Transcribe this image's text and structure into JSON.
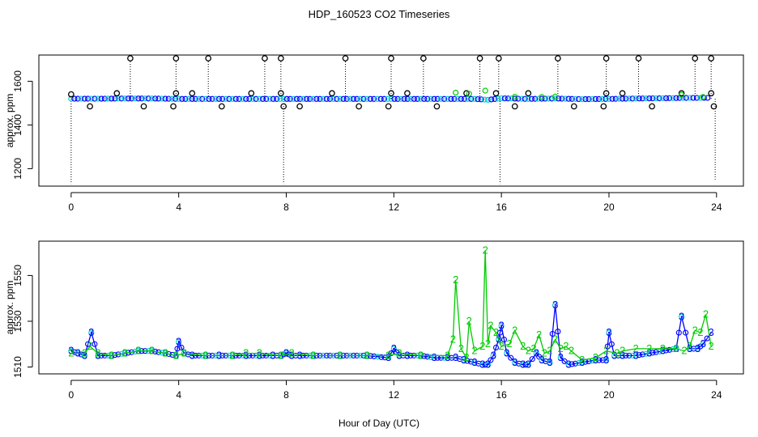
{
  "title": "HDP_160523  CO2 Timeseries",
  "xlabel": "Hour of Day (UTC)",
  "colors": {
    "black": "#000000",
    "blue": "#0000ff",
    "green": "#00cc00",
    "cyan": "#00cccc"
  },
  "chart_data": [
    {
      "type": "scatter",
      "title": "HDP_160523  CO2 Timeseries",
      "xlabel": "",
      "ylabel": "approx. ppm",
      "xlim": [
        -1.2,
        25.0
      ],
      "ylim": [
        1120,
        1720
      ],
      "xticks": [
        0,
        4,
        8,
        12,
        16,
        20,
        24
      ],
      "yticks": [
        1200,
        1400,
        1600
      ],
      "grid": false,
      "series": [
        {
          "name": "",
          "color": "#000000",
          "marker": "circle",
          "x": [
            0.0,
            0.7,
            1.7,
            2.2,
            2.7,
            3.8,
            3.9,
            3.9,
            4.5,
            5.1,
            5.6,
            6.7,
            7.2,
            7.8,
            7.8,
            7.9,
            8.5,
            9.7,
            10.2,
            10.7,
            11.8,
            11.9,
            11.9,
            12.5,
            13.1,
            13.6,
            14.7,
            15.2,
            15.8,
            15.9,
            16.5,
            17.0,
            18.1,
            18.7,
            19.8,
            19.9,
            19.9,
            20.5,
            21.1,
            21.6,
            22.7,
            23.2,
            23.8,
            23.8,
            23.9
          ],
          "y": [
            1540,
            1485,
            1545,
            1705,
            1485,
            1485,
            1545,
            1705,
            1545,
            1705,
            1485,
            1545,
            1705,
            1545,
            1705,
            1485,
            1485,
            1545,
            1705,
            1485,
            1485,
            1545,
            1705,
            1545,
            1705,
            1485,
            1545,
            1705,
            1545,
            1705,
            1485,
            1545,
            1705,
            1485,
            1485,
            1545,
            1705,
            1545,
            1705,
            1485,
            1545,
            1705,
            1545,
            1705,
            1485
          ]
        },
        {
          "name": "",
          "color": "#0000ff",
          "marker": "circle",
          "x": [
            0.0,
            1.0,
            2.0,
            3.0,
            4.0,
            5.0,
            6.0,
            7.0,
            7.9,
            9.0,
            10.0,
            11.0,
            11.9,
            13.0,
            14.0,
            15.0,
            15.5,
            16.0,
            17.0,
            18.0,
            19.0,
            20.0,
            21.0,
            22.0,
            23.0,
            23.8
          ],
          "y": [
            1520,
            1520,
            1521,
            1521,
            1519,
            1519,
            1519,
            1519,
            1519,
            1519,
            1519,
            1519,
            1519,
            1519,
            1519,
            1519,
            1515,
            1522,
            1519,
            1521,
            1518,
            1519,
            1521,
            1522,
            1524,
            1524
          ]
        },
        {
          "name": "",
          "color": "#00cc00",
          "marker": "circle",
          "x": [
            14.3,
            14.8,
            15.4,
            16.5,
            17.5,
            18.0,
            22.7,
            23.5
          ],
          "y": [
            1548,
            1543,
            1557,
            1529,
            1528,
            1530,
            1538,
            1528
          ]
        }
      ]
    },
    {
      "type": "line",
      "title": "",
      "xlabel": "Hour of Day (UTC)",
      "ylabel": "approx. ppm",
      "xlim": [
        -1.2,
        25.0
      ],
      "ylim": [
        1507,
        1565
      ],
      "xticks": [
        0,
        4,
        8,
        12,
        16,
        20,
        24
      ],
      "yticks": [
        1510,
        1530,
        1550
      ],
      "grid": false,
      "series": [
        {
          "name": "",
          "color": "#0000ff",
          "marker": "3",
          "x": [
            0.0,
            0.25,
            0.5,
            0.75,
            1.0,
            1.5,
            2.0,
            2.5,
            3.0,
            3.5,
            3.9,
            4.0,
            4.2,
            4.5,
            5.0,
            5.5,
            6.0,
            6.5,
            7.0,
            7.5,
            7.8,
            8.0,
            8.2,
            8.5,
            9.0,
            10.0,
            11.0,
            11.8,
            12.0,
            12.2,
            12.5,
            13.0,
            13.5,
            14.0,
            14.3,
            14.6,
            15.0,
            15.3,
            15.5,
            15.7,
            15.9,
            16.0,
            16.2,
            16.5,
            16.8,
            17.0,
            17.3,
            17.5,
            17.8,
            18.0,
            18.2,
            18.5,
            19.0,
            19.5,
            19.9,
            20.0,
            20.2,
            20.5,
            21.0,
            21.5,
            22.0,
            22.5,
            22.7,
            23.0,
            23.3,
            23.5,
            23.8
          ],
          "y": [
            1517,
            1516,
            1515,
            1525,
            1515,
            1515,
            1516,
            1517,
            1517,
            1516,
            1515,
            1521,
            1516,
            1515,
            1515,
            1515,
            1515,
            1515,
            1515,
            1515,
            1515,
            1516,
            1515,
            1515,
            1515,
            1515,
            1515,
            1514,
            1518,
            1515,
            1515,
            1515,
            1514,
            1514,
            1514,
            1513,
            1512,
            1511,
            1511,
            1515,
            1522,
            1528,
            1516,
            1512,
            1511,
            1511,
            1516,
            1513,
            1512,
            1537,
            1514,
            1511,
            1512,
            1513,
            1513,
            1525,
            1515,
            1515,
            1515,
            1516,
            1517,
            1518,
            1532,
            1518,
            1518,
            1520,
            1525
          ]
        },
        {
          "name": "",
          "color": "#00cc00",
          "marker": "2",
          "x": [
            0.0,
            0.5,
            0.7,
            1.0,
            1.5,
            2.0,
            2.5,
            3.0,
            3.5,
            3.9,
            4.2,
            5.0,
            6.0,
            6.5,
            7.0,
            7.8,
            8.2,
            9.0,
            10.0,
            11.0,
            11.8,
            12.2,
            13.0,
            14.0,
            14.2,
            14.3,
            14.5,
            14.7,
            14.8,
            15.0,
            15.3,
            15.4,
            15.5,
            15.6,
            15.8,
            16.0,
            16.3,
            16.5,
            16.8,
            17.0,
            17.2,
            17.4,
            17.6,
            17.8,
            18.0,
            18.2,
            18.4,
            18.6,
            19.0,
            19.5,
            19.9,
            20.3,
            20.5,
            21.0,
            21.5,
            22.0,
            22.5,
            22.8,
            23.0,
            23.2,
            23.4,
            23.6,
            23.8
          ],
          "y": [
            1516,
            1516,
            1519,
            1516,
            1515,
            1516,
            1517,
            1517,
            1516,
            1515,
            1516,
            1515,
            1515,
            1516,
            1516,
            1515,
            1516,
            1515,
            1515,
            1515,
            1515,
            1516,
            1515,
            1515,
            1522,
            1548,
            1518,
            1514,
            1530,
            1517,
            1519,
            1561,
            1520,
            1528,
            1525,
            1519,
            1520,
            1526,
            1519,
            1517,
            1518,
            1524,
            1516,
            1517,
            1522,
            1518,
            1519,
            1517,
            1513,
            1514,
            1517,
            1516,
            1517,
            1518,
            1518,
            1518,
            1518,
            1517,
            1519,
            1526,
            1525,
            1533,
            1519
          ]
        }
      ]
    }
  ]
}
